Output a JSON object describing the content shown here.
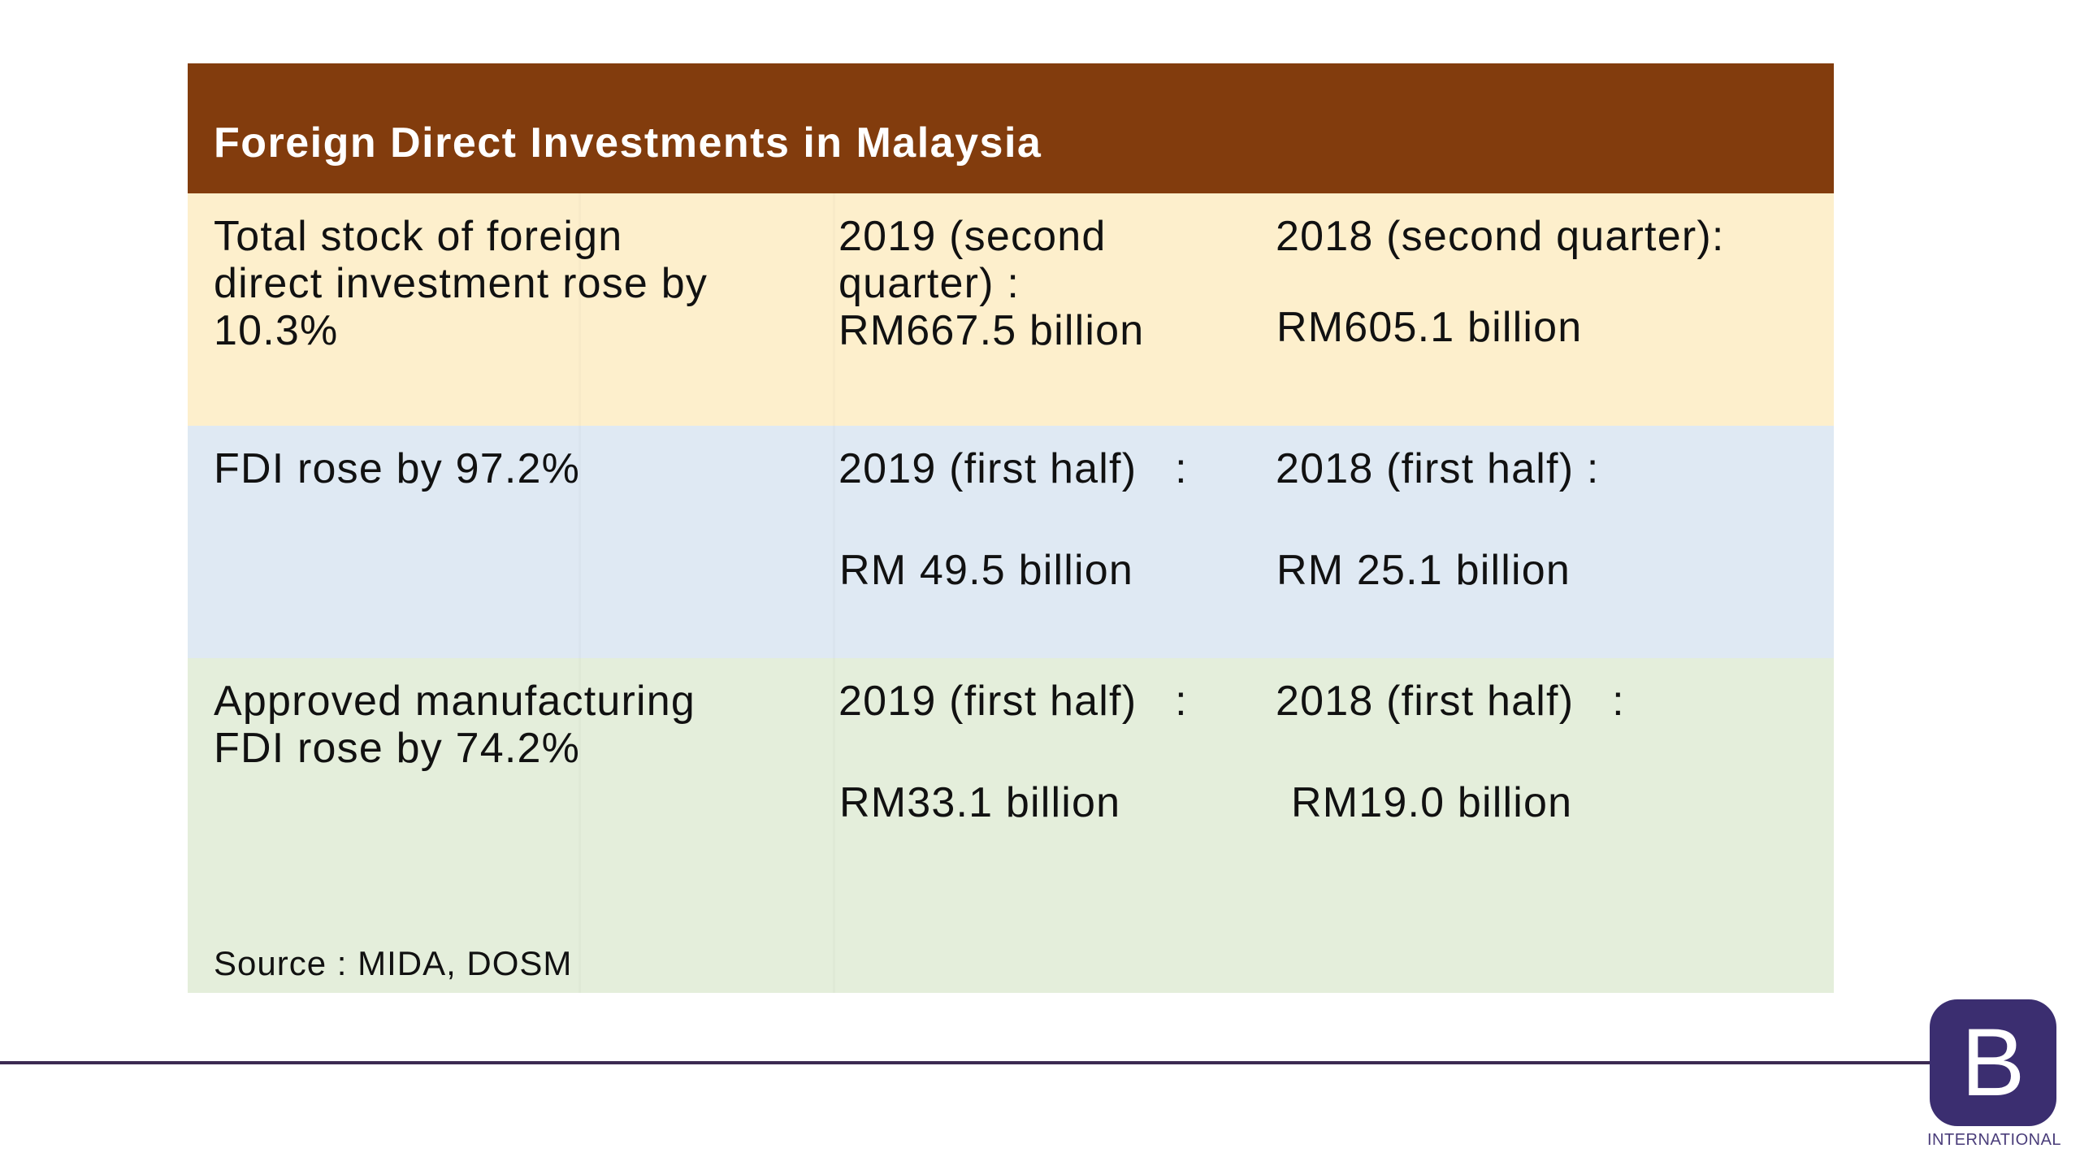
{
  "table": {
    "title": "Foreign Direct Investments in Malaysia",
    "rows": [
      {
        "description": [
          "Total stock of foreign",
          "direct investment rose by",
          "10.3%"
        ],
        "current": [
          "2019 (second",
          "quarter) :",
          "RM667.5 billion"
        ],
        "previous_label": "2018 (second quarter):",
        "previous_value": "RM605.1 billion"
      },
      {
        "description": [
          "FDI rose by 97.2%"
        ],
        "current_label": "2019 (first half)   :",
        "current_value": "RM 49.5 billion",
        "previous_label": "2018 (first half) :",
        "previous_value": "RM 25.1 billion"
      },
      {
        "description": [
          "Approved manufacturing",
          "FDI rose by 74.2%"
        ],
        "current_label": "2019 (first half)   :",
        "current_value": "RM33.1 billion",
        "previous_label": "2018 (first half)   :",
        "previous_value": "RM19.0 billion"
      }
    ],
    "source": "Source : MIDA, DOSM"
  },
  "colors": {
    "header_bg": "#823c0d",
    "row1_bg": "#fdefcc",
    "row2_bg": "#dfe9f3",
    "row3_bg": "#e4eedb",
    "rule": "#3b2a52",
    "logo_bg": "#3b2e70"
  },
  "logo": {
    "letter": "B",
    "caption": "INTERNATIONAL"
  }
}
